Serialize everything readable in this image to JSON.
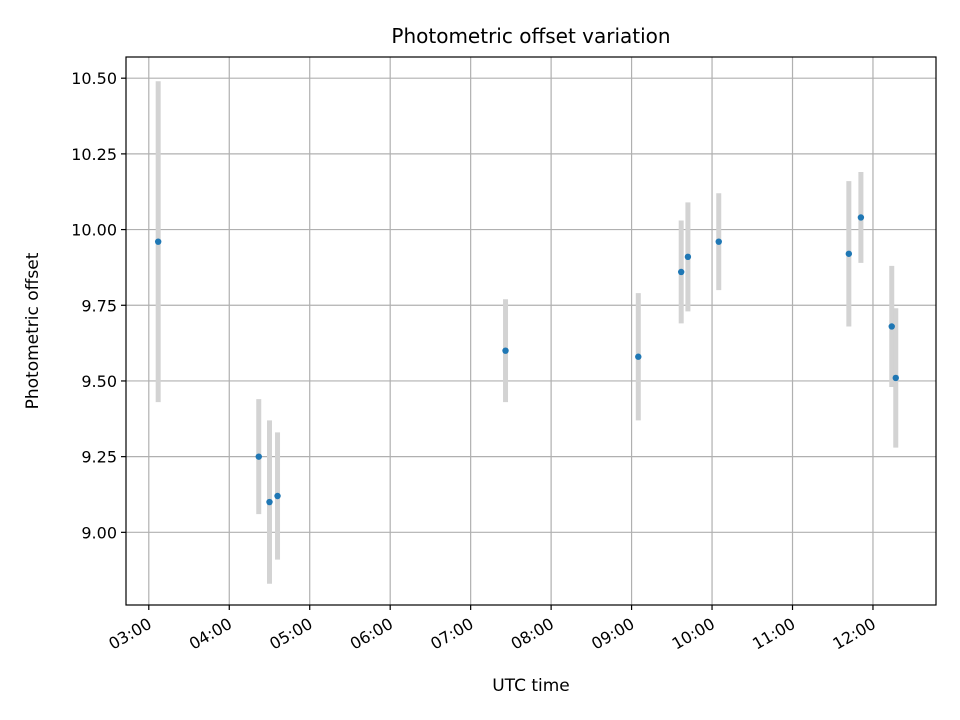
{
  "chart_data": {
    "type": "scatter",
    "title": "Photometric offset variation",
    "xlabel": "UTC time",
    "ylabel": "Photometric offset",
    "x_tick_labels": [
      "03:00",
      "04:00",
      "05:00",
      "06:00",
      "07:00",
      "08:00",
      "09:00",
      "10:00",
      "11:00",
      "12:00"
    ],
    "y_tick_labels": [
      "9.00",
      "9.25",
      "9.50",
      "9.75",
      "10.00",
      "10.25",
      "10.50"
    ],
    "y_ticks": [
      9.0,
      9.25,
      9.5,
      9.75,
      10.0,
      10.25,
      10.5
    ],
    "xlim": [
      "02:43",
      "12:47"
    ],
    "ylim": [
      8.76,
      10.57
    ],
    "grid": true,
    "marker_color": "#1f77b4",
    "errorbar_color": "#d3d3d3",
    "points": [
      {
        "time": "03:07",
        "y": 9.96,
        "yerr": 0.53
      },
      {
        "time": "04:22",
        "y": 9.25,
        "yerr": 0.19
      },
      {
        "time": "04:30",
        "y": 9.1,
        "yerr": 0.27
      },
      {
        "time": "04:36",
        "y": 9.12,
        "yerr": 0.21
      },
      {
        "time": "07:26",
        "y": 9.6,
        "yerr": 0.17
      },
      {
        "time": "09:05",
        "y": 9.58,
        "yerr": 0.21
      },
      {
        "time": "09:37",
        "y": 9.86,
        "yerr": 0.17
      },
      {
        "time": "09:42",
        "y": 9.91,
        "yerr": 0.18
      },
      {
        "time": "10:05",
        "y": 9.96,
        "yerr": 0.16
      },
      {
        "time": "11:42",
        "y": 9.92,
        "yerr": 0.24
      },
      {
        "time": "11:51",
        "y": 10.04,
        "yerr": 0.15
      },
      {
        "time": "12:14",
        "y": 9.68,
        "yerr": 0.2
      },
      {
        "time": "12:17",
        "y": 9.51,
        "yerr": 0.23
      }
    ]
  }
}
